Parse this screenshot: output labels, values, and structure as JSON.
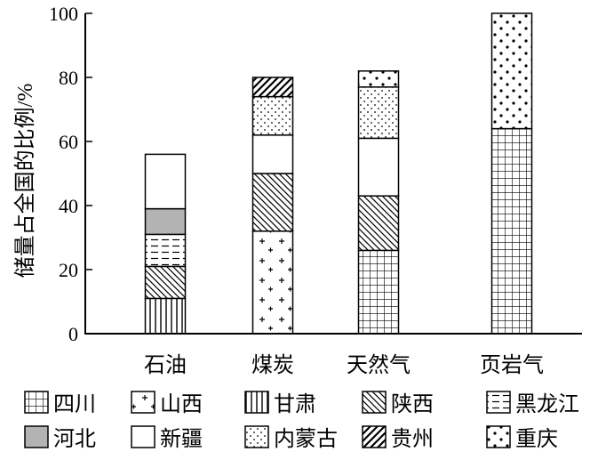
{
  "chart_data": {
    "type": "bar",
    "stacked": true,
    "ylabel": "储量占全国的比例/%",
    "xlabel": "",
    "ylim": [
      0,
      100
    ],
    "yticks": [
      0,
      20,
      40,
      60,
      80,
      100
    ],
    "categories": [
      "石油",
      "煤炭",
      "天然气",
      "页岩气"
    ],
    "series": [
      {
        "name": "四川",
        "pattern": "grid",
        "values": [
          0,
          0,
          26,
          64
        ]
      },
      {
        "name": "山西",
        "pattern": "plus",
        "values": [
          0,
          32,
          0,
          0
        ]
      },
      {
        "name": "甘肃",
        "pattern": "vlines",
        "values": [
          11,
          0,
          0,
          0
        ]
      },
      {
        "name": "陕西",
        "pattern": "diag-thin",
        "values": [
          10,
          18,
          17,
          0
        ]
      },
      {
        "name": "黑龙江",
        "pattern": "dashes",
        "values": [
          10,
          0,
          0,
          0
        ]
      },
      {
        "name": "河北",
        "pattern": "gray",
        "values": [
          8,
          0,
          0,
          0
        ]
      },
      {
        "name": "新疆",
        "pattern": "blank",
        "values": [
          17,
          12,
          18,
          0
        ]
      },
      {
        "name": "内蒙古",
        "pattern": "sparse-dots",
        "values": [
          0,
          12,
          16,
          0
        ]
      },
      {
        "name": "贵州",
        "pattern": "diag-thick",
        "values": [
          0,
          6,
          0,
          0
        ]
      },
      {
        "name": "重庆",
        "pattern": "dots",
        "values": [
          0,
          0,
          5,
          36
        ]
      }
    ],
    "grid": false,
    "legend_position": "bottom"
  }
}
